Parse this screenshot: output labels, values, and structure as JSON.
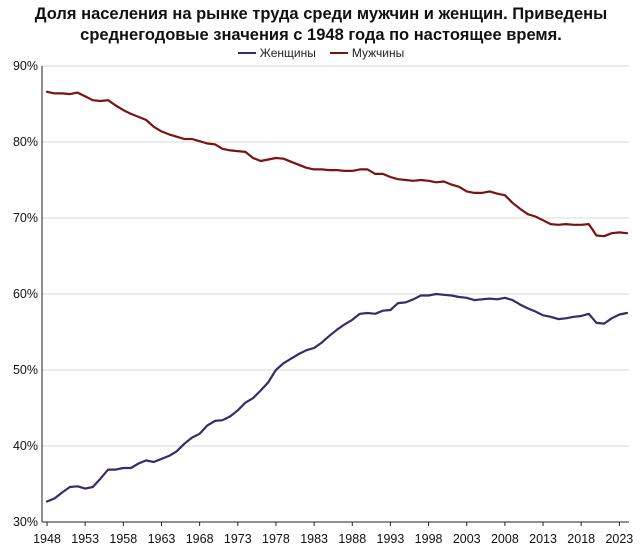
{
  "chart_data": {
    "type": "line",
    "title": "Доля населения на рынке труда среди мужчин и женщин. Приведены среднегодовые значения с 1948 года по настоящее время.",
    "xlabel": "",
    "ylabel": "",
    "ylim": [
      30,
      90
    ],
    "xlim": [
      1948,
      2024
    ],
    "y_ticks": [
      30,
      40,
      50,
      60,
      70,
      80,
      90
    ],
    "y_tick_labels": [
      "30%",
      "40%",
      "50%",
      "60%",
      "70%",
      "80%",
      "90%"
    ],
    "x_ticks": [
      1948,
      1953,
      1958,
      1963,
      1968,
      1973,
      1978,
      1983,
      1988,
      1993,
      1998,
      2003,
      2008,
      2013,
      2018,
      2023
    ],
    "grid": "horizontal",
    "legend_position": "top-center",
    "x": [
      1948,
      1949,
      1950,
      1951,
      1952,
      1953,
      1954,
      1955,
      1956,
      1957,
      1958,
      1959,
      1960,
      1961,
      1962,
      1963,
      1964,
      1965,
      1966,
      1967,
      1968,
      1969,
      1970,
      1971,
      1972,
      1973,
      1974,
      1975,
      1976,
      1977,
      1978,
      1979,
      1980,
      1981,
      1982,
      1983,
      1984,
      1985,
      1986,
      1987,
      1988,
      1989,
      1990,
      1991,
      1992,
      1993,
      1994,
      1995,
      1996,
      1997,
      1998,
      1999,
      2000,
      2001,
      2002,
      2003,
      2004,
      2005,
      2006,
      2007,
      2008,
      2009,
      2010,
      2011,
      2012,
      2013,
      2014,
      2015,
      2016,
      2017,
      2018,
      2019,
      2020,
      2021,
      2022,
      2023,
      2024
    ],
    "series": [
      {
        "name": "Женщины",
        "color": "#3b2a6b",
        "values": [
          32.7,
          33.1,
          33.9,
          34.6,
          34.7,
          34.4,
          34.6,
          35.7,
          36.9,
          36.9,
          37.1,
          37.1,
          37.7,
          38.1,
          37.9,
          38.3,
          38.7,
          39.3,
          40.3,
          41.1,
          41.6,
          42.7,
          43.3,
          43.4,
          43.9,
          44.7,
          45.7,
          46.3,
          47.3,
          48.4,
          50.0,
          50.9,
          51.5,
          52.1,
          52.6,
          52.9,
          53.6,
          54.5,
          55.3,
          56.0,
          56.6,
          57.4,
          57.5,
          57.4,
          57.8,
          57.9,
          58.8,
          58.9,
          59.3,
          59.8,
          59.8,
          60.0,
          59.9,
          59.8,
          59.6,
          59.5,
          59.2,
          59.3,
          59.4,
          59.3,
          59.5,
          59.2,
          58.6,
          58.1,
          57.7,
          57.2,
          57.0,
          56.7,
          56.8,
          57.0,
          57.1,
          57.4,
          56.2,
          56.1,
          56.8,
          57.3,
          57.5
        ]
      },
      {
        "name": "Мужчины",
        "color": "#7a1313",
        "values": [
          86.6,
          86.4,
          86.4,
          86.3,
          86.5,
          86.0,
          85.5,
          85.4,
          85.5,
          84.8,
          84.2,
          83.7,
          83.3,
          82.9,
          82.0,
          81.4,
          81.0,
          80.7,
          80.4,
          80.4,
          80.1,
          79.8,
          79.7,
          79.1,
          78.9,
          78.8,
          78.7,
          77.9,
          77.5,
          77.7,
          77.9,
          77.8,
          77.4,
          77.0,
          76.6,
          76.4,
          76.4,
          76.3,
          76.3,
          76.2,
          76.2,
          76.4,
          76.4,
          75.8,
          75.8,
          75.4,
          75.1,
          75.0,
          74.9,
          75.0,
          74.9,
          74.7,
          74.8,
          74.4,
          74.1,
          73.5,
          73.3,
          73.3,
          73.5,
          73.2,
          73.0,
          72.0,
          71.2,
          70.5,
          70.2,
          69.7,
          69.2,
          69.1,
          69.2,
          69.1,
          69.1,
          69.2,
          67.7,
          67.6,
          68.0,
          68.1,
          68.0
        ]
      }
    ]
  }
}
